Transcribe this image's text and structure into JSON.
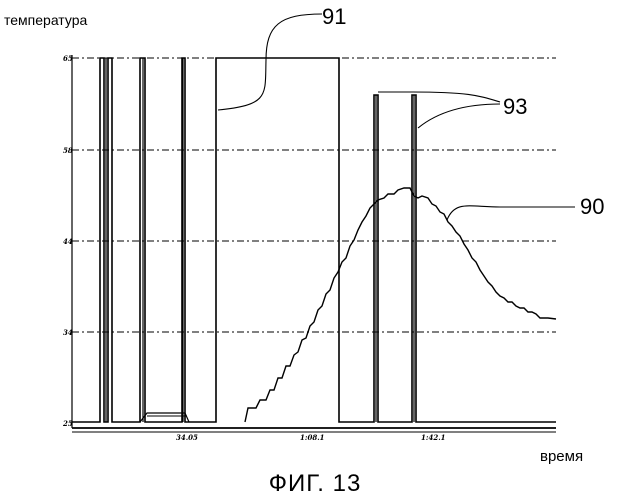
{
  "labels": {
    "y_axis": "температура",
    "x_axis": "время",
    "caption": "ФИГ. 13"
  },
  "y_ticks": [
    "65",
    "58",
    "44",
    "34",
    "25"
  ],
  "x_ticks": [
    "34.05",
    "1:08.1",
    "1:42.1"
  ],
  "callouts": {
    "c91": "91",
    "c93": "93",
    "c90": "90"
  }
}
